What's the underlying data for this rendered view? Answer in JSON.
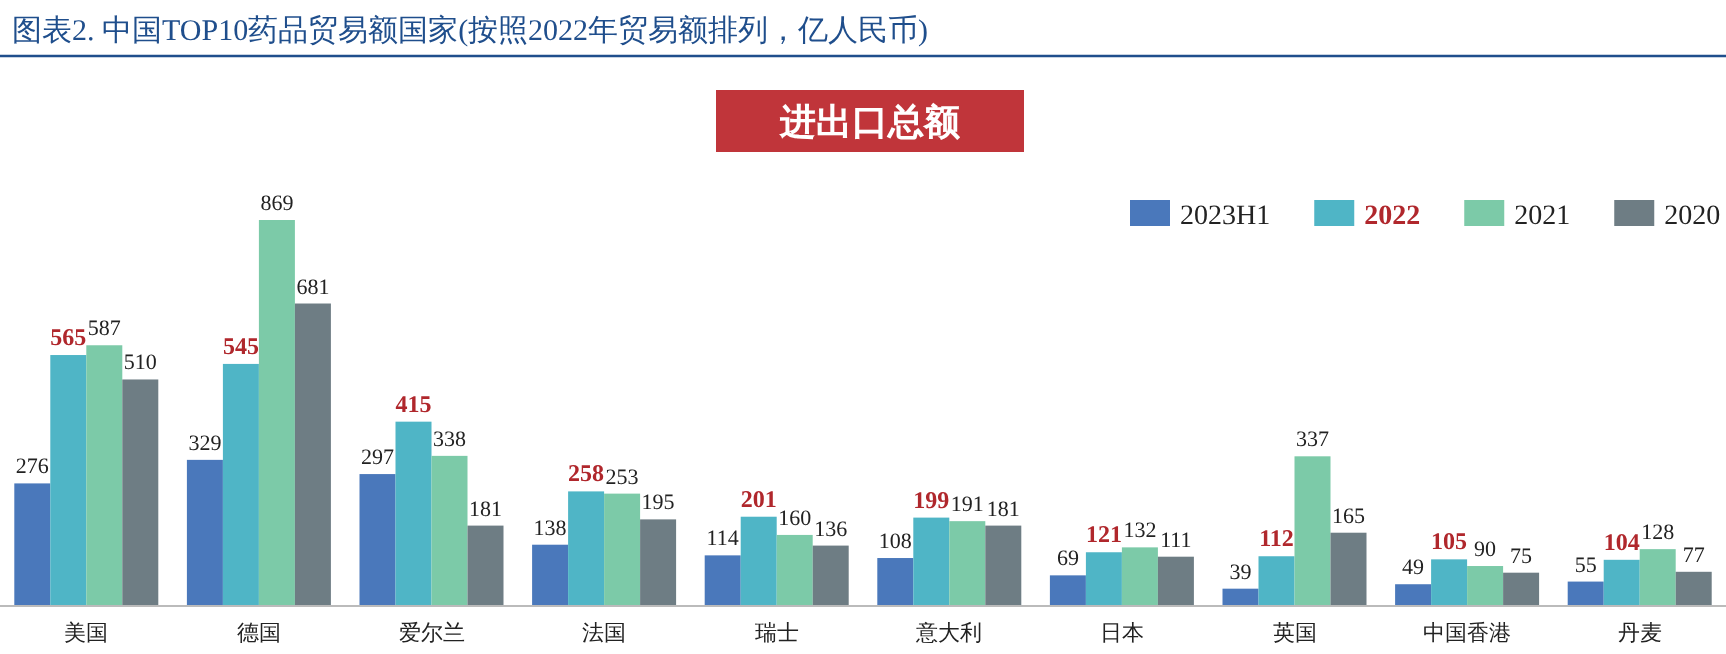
{
  "chart_data": {
    "type": "bar",
    "title": "图表2. 中国TOP10药品贸易额国家(按照2022年贸易额排列，亿人民币)",
    "subtitle": "进出口总额",
    "categories": [
      "美国",
      "德国",
      "爱尔兰",
      "法国",
      "瑞士",
      "意大利",
      "日本",
      "英国",
      "中国香港",
      "丹麦"
    ],
    "series": [
      {
        "name": "2023H1",
        "color": "#4a78bb",
        "values": [
          276,
          329,
          297,
          138,
          114,
          108,
          69,
          39,
          49,
          55
        ]
      },
      {
        "name": "2022",
        "color": "#4fb5c6",
        "values": [
          565,
          545,
          415,
          258,
          201,
          199,
          121,
          112,
          105,
          104
        ]
      },
      {
        "name": "2021",
        "color": "#7ccaa8",
        "values": [
          587,
          869,
          338,
          253,
          160,
          191,
          132,
          337,
          90,
          128
        ]
      },
      {
        "name": "2020",
        "color": "#6e7d84",
        "values": [
          510,
          681,
          181,
          195,
          136,
          181,
          111,
          165,
          75,
          77
        ]
      }
    ],
    "data_labels": true,
    "legend": "top right"
  }
}
